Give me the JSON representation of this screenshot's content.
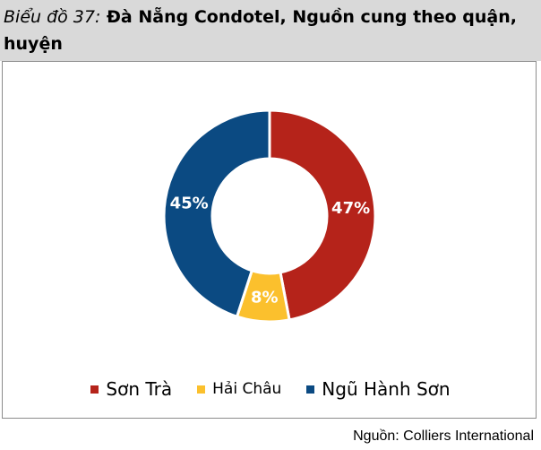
{
  "header": {
    "title_prefix": "Biểu đồ 37:",
    "title_main": "Đà Nẵng Condotel, Nguồn cung theo quận, huyện"
  },
  "source": "Nguồn: Colliers International",
  "colors": {
    "header_bg": "#d9d9d9",
    "son_tra": "#b5231a",
    "hai_chau": "#fbc02d",
    "ngu_hanh_son": "#0b4a82"
  },
  "chart_data": {
    "type": "pie",
    "donut": true,
    "title": "Đà Nẵng Condotel, Nguồn cung theo quận, huyện",
    "categories": [
      "Sơn Trà",
      "Hải Châu",
      "Ngũ Hành Sơn"
    ],
    "values": [
      47,
      8,
      45
    ],
    "labels": [
      "47%",
      "8%",
      "45%"
    ],
    "colors": [
      "#b5231a",
      "#fbc02d",
      "#0b4a82"
    ],
    "legend_position": "bottom"
  },
  "legend": [
    {
      "label": "Sơn Trà",
      "color": "#b5231a"
    },
    {
      "label": "Hải Châu",
      "color": "#fbc02d"
    },
    {
      "label": "Ngũ Hành Sơn",
      "color": "#0b4a82"
    }
  ]
}
